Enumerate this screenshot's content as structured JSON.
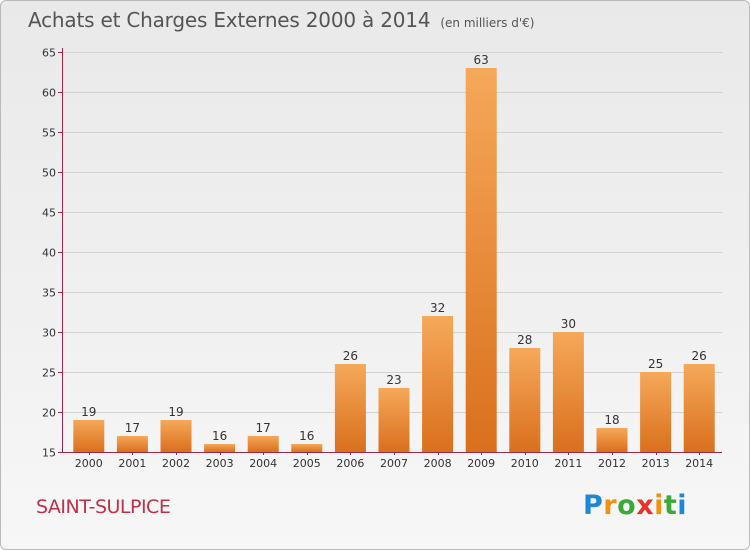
{
  "header": {
    "title": "Achats et Charges Externes 2000 à 2014",
    "unit": "(en milliers d'€)"
  },
  "footer": {
    "city": "SAINT-SULPICE",
    "logo_letters": [
      "P",
      "r",
      "o",
      "x",
      "i",
      "t",
      "i"
    ],
    "logo_colors": [
      "#1e88d8",
      "#f29111",
      "#3aa935",
      "#e8332a",
      "#f29111",
      "#3aa935",
      "#1e88d8"
    ]
  },
  "colors": {
    "bar_light": "#f6a85a",
    "bar_dark": "#d9701d",
    "axis": "#9a2a4a",
    "grid": "#d2d2d2"
  },
  "chart_data": {
    "type": "bar",
    "title": "Achats et Charges Externes 2000 à 2014",
    "subtitle": "(en milliers d'€)",
    "xlabel": "",
    "ylabel": "",
    "categories": [
      "2000",
      "2001",
      "2002",
      "2003",
      "2004",
      "2005",
      "2006",
      "2007",
      "2008",
      "2009",
      "2010",
      "2011",
      "2012",
      "2013",
      "2014"
    ],
    "values": [
      19,
      17,
      19,
      16,
      17,
      16,
      26,
      23,
      32,
      63,
      28,
      30,
      18,
      25,
      26
    ],
    "ylim": [
      15,
      65
    ],
    "yticks": [
      15,
      20,
      25,
      30,
      35,
      40,
      45,
      50,
      55,
      60,
      65
    ],
    "grid": true,
    "data_labels": true
  }
}
